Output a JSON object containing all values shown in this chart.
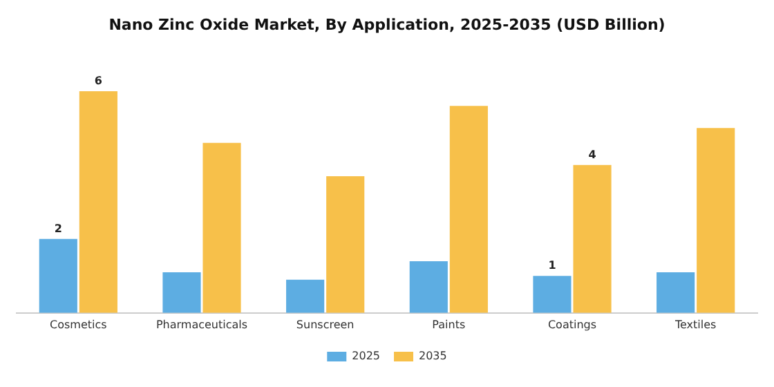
{
  "chart_data": {
    "type": "bar",
    "title": "Nano Zinc Oxide Market, By Application, 2025-2035 (USD Billion)",
    "categories": [
      "Cosmetics",
      "Pharmaceuticals",
      "Sunscreen",
      "Paints",
      "Coatings",
      "Textiles"
    ],
    "grid": false,
    "legend": "bottom",
    "series": [
      {
        "name": "2025",
        "color": "#5dade2",
        "values": [
          2,
          1.1,
          0.9,
          1.4,
          1,
          1.1
        ],
        "value_labels": [
          "2",
          null,
          null,
          null,
          "1",
          null
        ]
      },
      {
        "name": "2035",
        "color": "#f7c04a",
        "values": [
          6,
          4.6,
          3.7,
          5.6,
          4,
          5
        ],
        "value_labels": [
          "6",
          null,
          null,
          null,
          "4",
          null
        ]
      }
    ]
  }
}
